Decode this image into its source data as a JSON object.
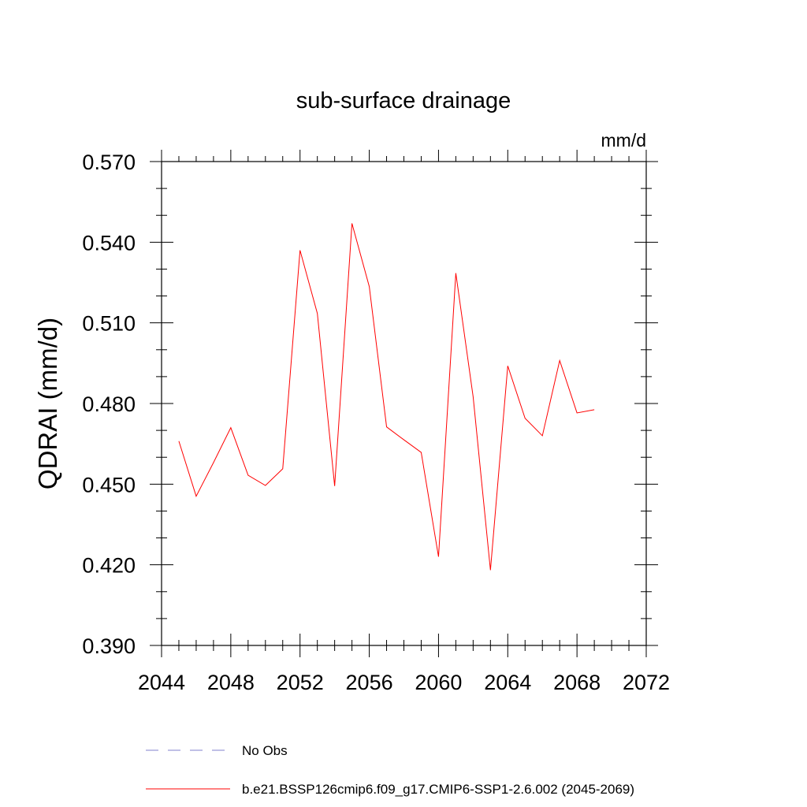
{
  "chart_data": {
    "type": "line",
    "title": "sub-surface drainage",
    "units_label": "mm/d",
    "ylabel": "QDRAI  (mm/d)",
    "xlabel": "",
    "xlim": [
      2044,
      2072
    ],
    "ylim": [
      0.39,
      0.57
    ],
    "x_ticks": [
      2044,
      2048,
      2052,
      2056,
      2060,
      2064,
      2068,
      2072
    ],
    "x_tick_labels": [
      "2044",
      "2048",
      "2052",
      "2056",
      "2060",
      "2064",
      "2068",
      "2072"
    ],
    "x_minor_step": 1,
    "y_ticks": [
      0.39,
      0.42,
      0.45,
      0.48,
      0.51,
      0.54,
      0.57
    ],
    "y_tick_labels": [
      "0.390",
      "0.420",
      "0.450",
      "0.480",
      "0.510",
      "0.540",
      "0.570"
    ],
    "y_minor_step": 0.01,
    "grid": false,
    "legend_position": "bottom",
    "series": [
      {
        "name": "b.e21.BSSP126cmip6.f09_g17.CMIP6-SSP1-2.6.002 (2045-2069)",
        "color": "#ff0000",
        "dash": "solid",
        "x": [
          2045,
          2046,
          2047,
          2048,
          2049,
          2050,
          2051,
          2052,
          2053,
          2054,
          2055,
          2056,
          2057,
          2058,
          2059,
          2060,
          2061,
          2062,
          2063,
          2064,
          2065,
          2066,
          2067,
          2068,
          2069
        ],
        "values": [
          0.466,
          0.4455,
          0.458,
          0.471,
          0.4533,
          0.4495,
          0.4557,
          0.537,
          0.5135,
          0.4493,
          0.547,
          0.5235,
          0.4713,
          0.4665,
          0.4618,
          0.423,
          0.5285,
          0.4825,
          0.418,
          0.494,
          0.4745,
          0.468,
          0.496,
          0.4765,
          0.4777
        ]
      }
    ],
    "legend": [
      {
        "label": "No Obs",
        "color": "#8080cc",
        "dash": "dashed"
      },
      {
        "label": "b.e21.BSSP126cmip6.f09_g17.CMIP6-SSP1-2.6.002 (2045-2069)",
        "color": "#ff0000",
        "dash": "solid"
      }
    ]
  }
}
